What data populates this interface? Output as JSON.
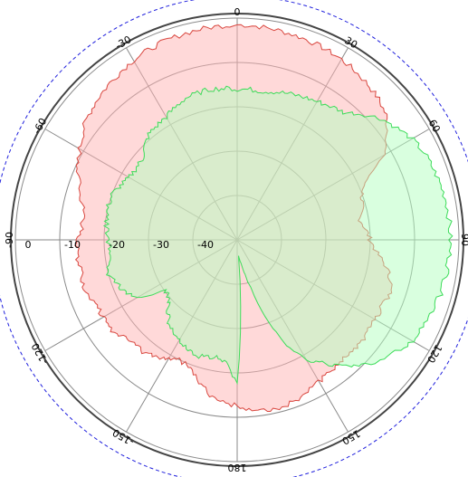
{
  "chart_data": {
    "type": "polar-area",
    "title": "",
    "angle_unit": "degrees",
    "angle_direction": "clockwise-from-top",
    "angle_range": [
      -180,
      180
    ],
    "radial_range_db": [
      -50,
      0
    ],
    "radial_rings_db": [
      -40,
      -30,
      -20,
      -10,
      0
    ],
    "radial_tick_labels": [
      "-40",
      "-30",
      "-20",
      "-10",
      "0"
    ],
    "angle_tick_labels": [
      {
        "angle": 0,
        "label": "0"
      },
      {
        "angle": 30,
        "label": "30"
      },
      {
        "angle": 60,
        "label": "60"
      },
      {
        "angle": 90,
        "label": "90"
      },
      {
        "angle": 120,
        "label": "120"
      },
      {
        "angle": 150,
        "label": "150"
      },
      {
        "angle": 180,
        "label": "180"
      },
      {
        "angle": -150,
        "label": "-150"
      },
      {
        "angle": -120,
        "label": "-120"
      },
      {
        "angle": -90,
        "label": "-90"
      },
      {
        "angle": -60,
        "label": "-60"
      },
      {
        "angle": -30,
        "label": "-30"
      }
    ],
    "spokes_every_deg": 30,
    "reference_circle_db": 5,
    "grid": true,
    "series": [
      {
        "color": "#d9473f",
        "fill": "#ffb3b3",
        "angles_deg": [
          0,
          10,
          20,
          30,
          40,
          45,
          50,
          55,
          60,
          65,
          70,
          75,
          80,
          85,
          90,
          95,
          100,
          105,
          110,
          115,
          120,
          125,
          130,
          135,
          140,
          145,
          150,
          155,
          160,
          165,
          170,
          175,
          180,
          -175,
          -170,
          -165,
          -160,
          -155,
          -150,
          -145,
          -140,
          -135,
          -130,
          -125,
          -120,
          -115,
          -110,
          -105,
          -100,
          -95,
          -90,
          -85,
          -80,
          -75,
          -70,
          -65,
          -60,
          -55,
          -50,
          -45,
          -40,
          -30,
          -20,
          -10
        ],
        "values_db": [
          -1.5,
          -1.8,
          -2.3,
          -3.0,
          -4.2,
          -5.0,
          -6.2,
          -8.5,
          -12,
          -18,
          -20,
          -21,
          -22,
          -21,
          -20,
          -18.5,
          -16,
          -14,
          -13.5,
          -14,
          -14,
          -14,
          -13.5,
          -13.7,
          -14,
          -13.8,
          -13,
          -12.2,
          -11.5,
          -11,
          -11.2,
          -11.8,
          -12.5,
          -13.5,
          -14.5,
          -17,
          -19,
          -20,
          -19,
          -18,
          -17,
          -17,
          -16,
          -15,
          -15,
          -15,
          -14,
          -14,
          -14,
          -13.8,
          -14,
          -15,
          -15,
          -13.5,
          -12,
          -10.5,
          -9,
          -7.5,
          -6.2,
          -5.3,
          -4.6,
          -3.2,
          -2.3,
          -1.8
        ]
      },
      {
        "color": "#3ddc5a",
        "fill": "#b3ffbf",
        "angles_deg": [
          0,
          10,
          20,
          30,
          40,
          45,
          50,
          55,
          60,
          65,
          70,
          75,
          80,
          85,
          90,
          95,
          100,
          105,
          110,
          115,
          120,
          125,
          130,
          135,
          140,
          145,
          150,
          155,
          160,
          165,
          170,
          175,
          180,
          -175,
          -170,
          -165,
          -160,
          -155,
          -150,
          -145,
          -140,
          -135,
          -130,
          -125,
          -120,
          -115,
          -110,
          -105,
          -100,
          -95,
          -90,
          -85,
          -80,
          -75,
          -70,
          -65,
          -60,
          -55,
          -50,
          -45,
          -40,
          -30,
          -20,
          -10
        ],
        "values_db": [
          -16,
          -16,
          -15,
          -14,
          -12.5,
          -10,
          -7.5,
          -6,
          -4.5,
          -3.5,
          -3,
          -2.5,
          -2,
          -2,
          -2,
          -2,
          -2.2,
          -2.6,
          -3,
          -3.6,
          -4.5,
          -6,
          -8,
          -10,
          -13,
          -16,
          -19,
          -24,
          -32,
          -40,
          -44,
          -46,
          -17.5,
          -22,
          -23,
          -23,
          -22,
          -23,
          -24,
          -25,
          -26,
          -28,
          -30,
          -30,
          -24,
          -22,
          -21,
          -20,
          -20.5,
          -21,
          -21,
          -20.5,
          -20,
          -20,
          -20,
          -21,
          -22,
          -22,
          -22,
          -20.5,
          -19,
          -18,
          -16,
          -15.5
        ]
      }
    ]
  }
}
